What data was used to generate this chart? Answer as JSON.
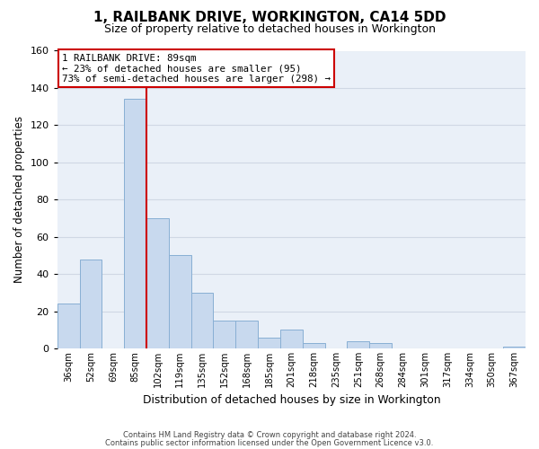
{
  "title": "1, RAILBANK DRIVE, WORKINGTON, CA14 5DD",
  "subtitle": "Size of property relative to detached houses in Workington",
  "xlabel": "Distribution of detached houses by size in Workington",
  "ylabel": "Number of detached properties",
  "categories": [
    "36sqm",
    "52sqm",
    "69sqm",
    "85sqm",
    "102sqm",
    "119sqm",
    "135sqm",
    "152sqm",
    "168sqm",
    "185sqm",
    "201sqm",
    "218sqm",
    "235sqm",
    "251sqm",
    "268sqm",
    "284sqm",
    "301sqm",
    "317sqm",
    "334sqm",
    "350sqm",
    "367sqm"
  ],
  "values": [
    24,
    48,
    0,
    134,
    70,
    50,
    30,
    15,
    15,
    6,
    10,
    3,
    0,
    4,
    3,
    0,
    0,
    0,
    0,
    0,
    1
  ],
  "bar_color": "#c8d9ee",
  "bar_edge_color": "#88afd4",
  "vline_color": "#cc0000",
  "annotation_title": "1 RAILBANK DRIVE: 89sqm",
  "annotation_line1": "← 23% of detached houses are smaller (95)",
  "annotation_line2": "73% of semi-detached houses are larger (298) →",
  "annotation_box_color": "#ffffff",
  "annotation_box_edge": "#cc0000",
  "ylim": [
    0,
    160
  ],
  "yticks": [
    0,
    20,
    40,
    60,
    80,
    100,
    120,
    140,
    160
  ],
  "footer1": "Contains HM Land Registry data © Crown copyright and database right 2024.",
  "footer2": "Contains public sector information licensed under the Open Government Licence v3.0.",
  "background_color": "#ffffff",
  "plot_bg_color": "#eaf0f8",
  "grid_color": "#d0d8e4"
}
